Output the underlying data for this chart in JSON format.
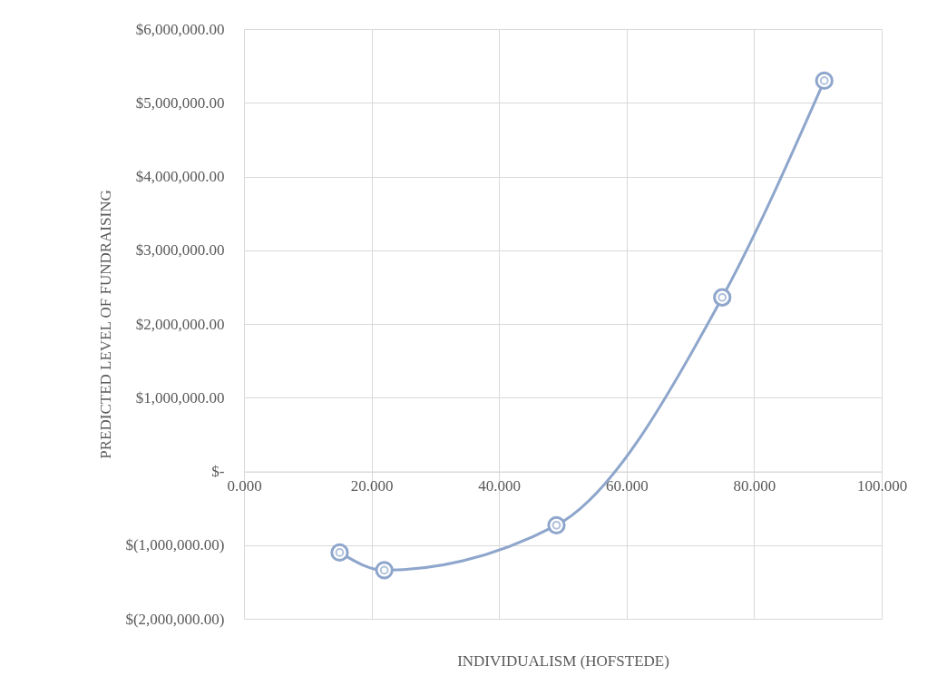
{
  "chart_data": {
    "type": "line",
    "xlabel": "INDIVIDUALISM (HOFSTEDE)",
    "ylabel": "PREDICTED LEVEL OF FUNDRAISING",
    "x": [
      15,
      22,
      49,
      75,
      91
    ],
    "series": [
      {
        "color": "#8ea6cc",
        "values": [
          -1100000,
          -1340000,
          -730000,
          2360000,
          5300000
        ]
      }
    ],
    "marker": "circle",
    "line_style": "solid",
    "grid": true,
    "xlim": [
      0,
      100
    ],
    "ylim": [
      -2000000,
      6000000
    ],
    "xticks": [
      {
        "value": 0,
        "label": "0.000"
      },
      {
        "value": 20,
        "label": "20.000"
      },
      {
        "value": 40,
        "label": "40.000"
      },
      {
        "value": 60,
        "label": "60.000"
      },
      {
        "value": 80,
        "label": "80.000"
      },
      {
        "value": 100,
        "label": "100.000"
      }
    ],
    "yticks": [
      {
        "value": -2000000,
        "label": "$(2,000,000.00)"
      },
      {
        "value": -1000000,
        "label": "$(1,000,000.00)"
      },
      {
        "value": 0,
        "label": "$-"
      },
      {
        "value": 1000000,
        "label": "$1,000,000.00"
      },
      {
        "value": 2000000,
        "label": "$2,000,000.00"
      },
      {
        "value": 3000000,
        "label": "$3,000,000.00"
      },
      {
        "value": 4000000,
        "label": "$4,000,000.00"
      },
      {
        "value": 5000000,
        "label": "$5,000,000.00"
      },
      {
        "value": 6000000,
        "label": "$6,000,000.00"
      }
    ]
  }
}
